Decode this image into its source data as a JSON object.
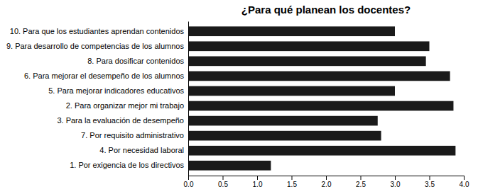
{
  "chart_data": {
    "type": "bar",
    "orientation": "horizontal",
    "title": "¿Para qué planean los docentes?",
    "categories": [
      "10. Para que los estudiantes aprendan contenidos",
      "9. Para desarrollo de competencias de los alumnos",
      "8. Para dosificar contenidos",
      "6. Para mejorar el desempeño de los alumnos",
      "5. Para mejorar indicadores educativos",
      "2. Para organizar mejor mi trabajo",
      "3. Para la evaluación de desempeño",
      "7. Por requisito administrativo",
      "4. Por necesidad laboral",
      "1. Por exigencia de los directivos"
    ],
    "values": [
      3.0,
      3.5,
      3.45,
      3.8,
      3.0,
      3.85,
      2.75,
      2.8,
      3.88,
      1.2
    ],
    "color": "#1a1a1a",
    "xlim": [
      0,
      4.0
    ],
    "xticks": [
      {
        "value": 0.0,
        "label": "0.0"
      },
      0.5,
      {
        "value": 1.0,
        "label": "1.0"
      },
      1.5,
      {
        "value": 2.0,
        "label": "2.0"
      },
      2.5,
      {
        "value": 3.0,
        "label": "3.0"
      },
      3.5,
      {
        "value": 4.0,
        "label": "4.0"
      }
    ]
  }
}
